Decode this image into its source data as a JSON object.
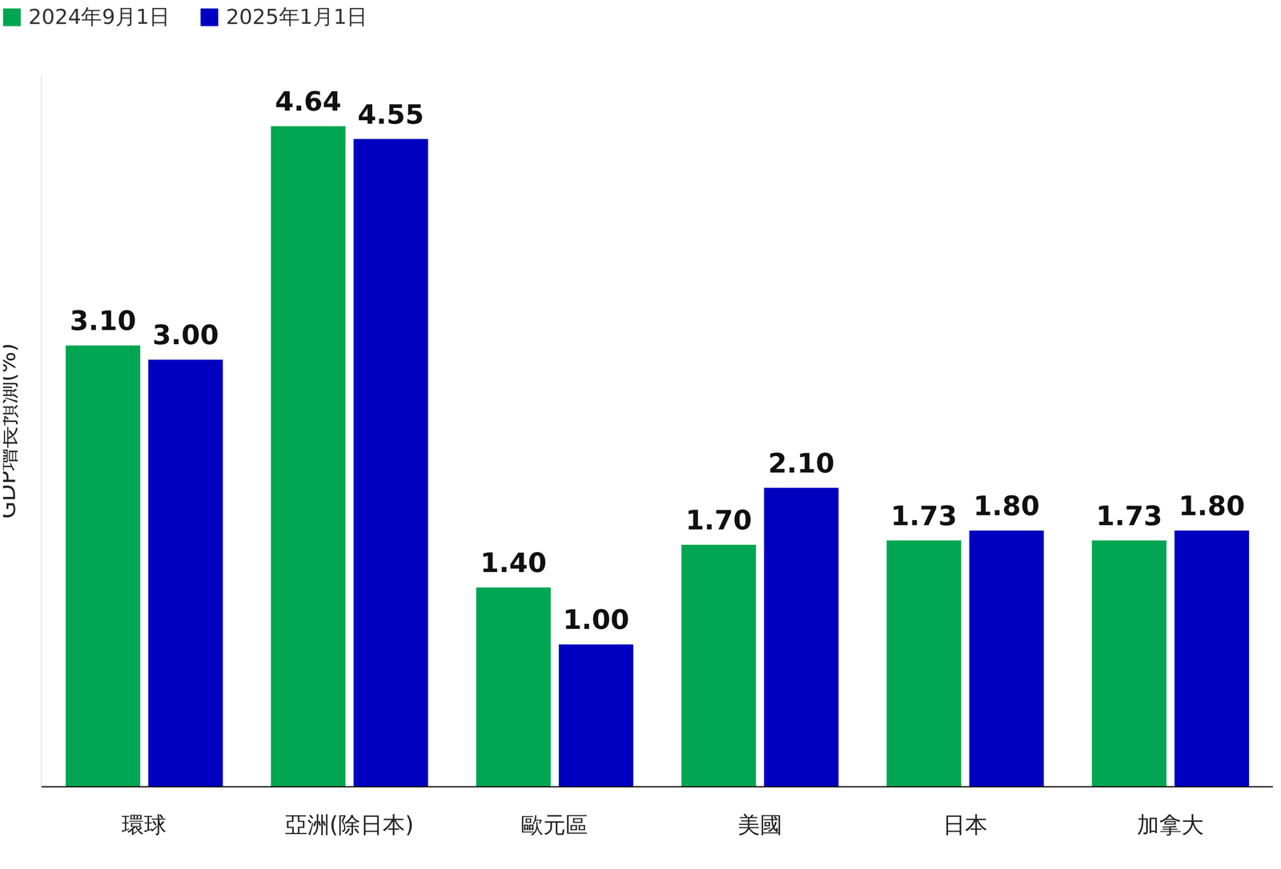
{
  "chart_data": {
    "type": "bar",
    "y_label": "GDP增長預測(%)",
    "categories": [
      "環球",
      "亞洲(除日本)",
      "歐元區",
      "美國",
      "日本",
      "加拿大"
    ],
    "series": [
      {
        "name": "2024年9月1日",
        "color": "#00a651",
        "values": [
          3.1,
          4.64,
          1.4,
          1.7,
          1.73,
          1.73
        ],
        "value_labels": [
          "3.10",
          "4.64",
          "1.40",
          "1.70",
          "1.73",
          "1.73"
        ]
      },
      {
        "name": "2025年1月1日",
        "color": "#0000c0",
        "values": [
          3.0,
          4.55,
          1.0,
          2.1,
          1.8,
          1.8
        ],
        "value_labels": [
          "3.00",
          "4.55",
          "1.00",
          "2.10",
          "1.80",
          "1.80"
        ]
      }
    ],
    "ylim": [
      0,
      5
    ],
    "yticks": [],
    "grid": false,
    "legend": "upper left",
    "data_labels": true,
    "tick_labels": "x"
  }
}
